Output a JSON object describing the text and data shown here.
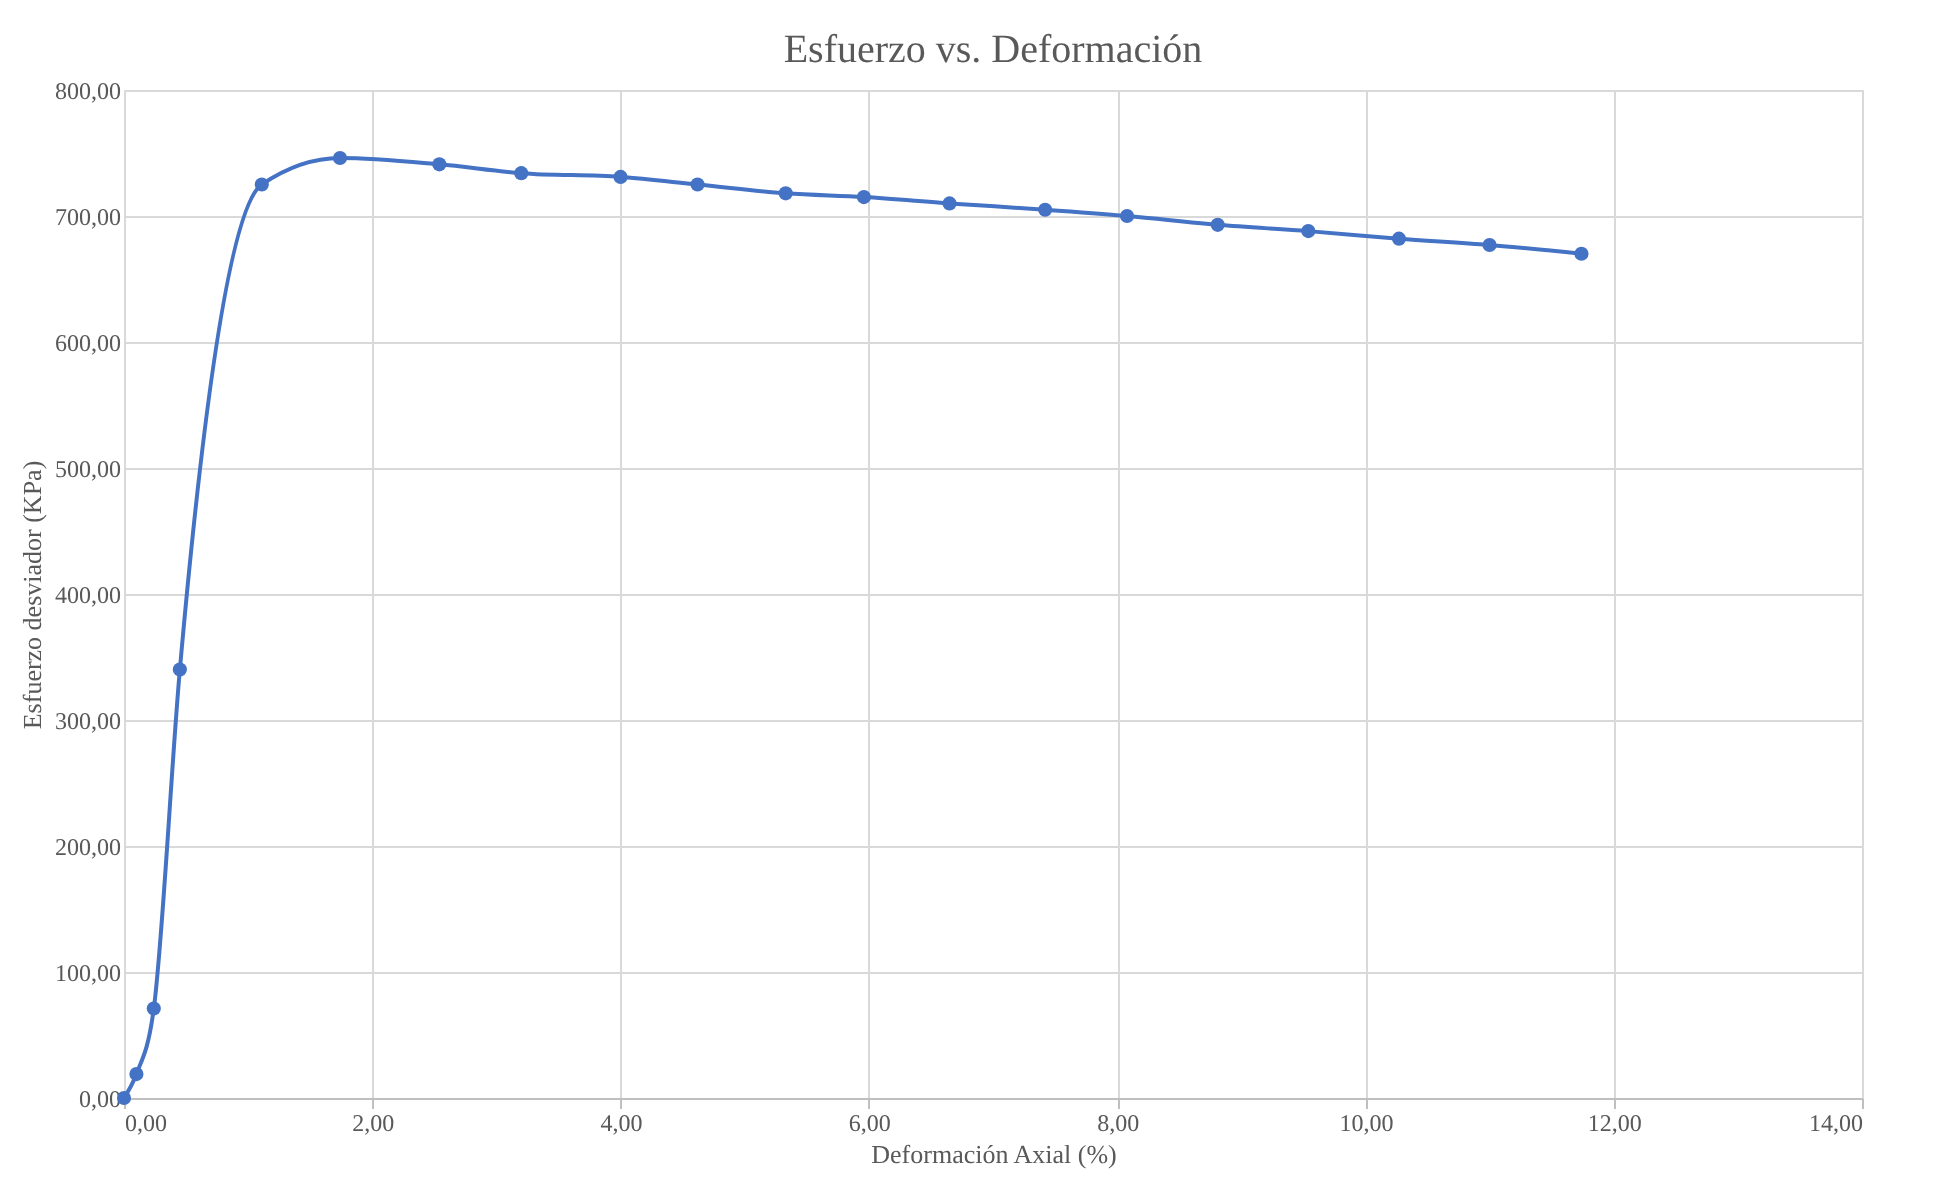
{
  "chart_data": {
    "type": "line",
    "title": "Esfuerzo vs. Deformación",
    "xlabel": "Deformación Axial (%)",
    "ylabel": "Esfuerzo desviador (KPa)",
    "x": [
      0,
      0.1,
      0.24,
      0.45,
      1.11,
      1.74,
      2.54,
      3.2,
      4.0,
      4.62,
      5.33,
      5.96,
      6.65,
      7.42,
      8.08,
      8.81,
      9.54,
      10.27,
      11.0,
      11.74
    ],
    "series": [
      {
        "color": "#4472c4",
        "values": [
          0,
          19,
          71,
          340,
          725,
          746,
          741,
          734,
          731,
          725,
          718,
          715,
          710,
          705,
          700,
          693,
          688,
          682,
          677,
          670
        ]
      }
    ],
    "xlim": [
      0,
      14
    ],
    "xticks": [
      {
        "value": 0,
        "label": "0,00"
      },
      {
        "value": 2,
        "label": "2,00"
      },
      {
        "value": 4,
        "label": "4,00"
      },
      {
        "value": 6,
        "label": "6,00"
      },
      {
        "value": 8,
        "label": "8,00"
      },
      {
        "value": 10,
        "label": "10,00"
      },
      {
        "value": 12,
        "label": "12,00"
      },
      {
        "value": 14,
        "label": "14,00"
      }
    ],
    "ylim": [
      0,
      800
    ],
    "yticks": [
      {
        "value": 0,
        "label": "0,00"
      },
      {
        "value": 100,
        "label": "100,00"
      },
      {
        "value": 200,
        "label": "200,00"
      },
      {
        "value": 300,
        "label": "300,00"
      },
      {
        "value": 400,
        "label": "400,00"
      },
      {
        "value": 500,
        "label": "500,00"
      },
      {
        "value": 600,
        "label": "600,00"
      },
      {
        "value": 700,
        "label": "700,00"
      },
      {
        "value": 800,
        "label": "800,00"
      }
    ],
    "grid": true,
    "marker": "circle",
    "line_style": "solid"
  }
}
